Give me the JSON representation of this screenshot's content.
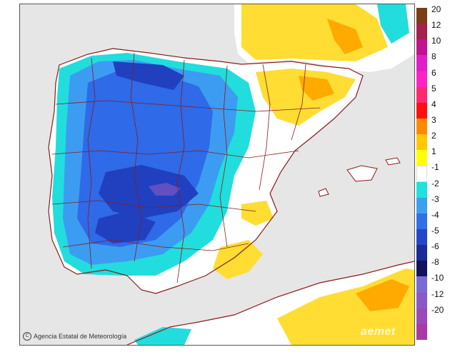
{
  "credit": {
    "icon": "copyright-icon",
    "text": "Agencia Estatal de Meteorología"
  },
  "watermark": "aemet",
  "legend": {
    "colors": [
      "#7b3d13",
      "#a3214b",
      "#c1128f",
      "#e020c6",
      "#ff23c5",
      "#ff2a6e",
      "#ff1010",
      "#ff8a00",
      "#ffc800",
      "#ffff00",
      "#ffffff",
      "#20e0e0",
      "#3ca0f0",
      "#2f70e8",
      "#2346c9",
      "#1a2a96",
      "#10125e",
      "#7a6ad8",
      "#8a58c8",
      "#9a4ab8",
      "#a83aa6"
    ],
    "labels": [
      "20",
      "12",
      "10",
      "8",
      "6",
      "5",
      "4",
      "3",
      "2",
      "1",
      "-1",
      "-2",
      "-3",
      "-4",
      "-5",
      "-6",
      "-8",
      "-10",
      "-12",
      "-20"
    ]
  },
  "colors": {
    "sea": "#e6e6e6",
    "border": "#8b1a1a",
    "land_white": "#ffffff",
    "yellow": "#ffdd33",
    "orange": "#ffaa00",
    "cyan": "#22dddd",
    "light_blue": "#3c9cf2",
    "blue": "#2f6ae8",
    "dark_blue": "#2040c0",
    "purple": "#6050c0"
  }
}
